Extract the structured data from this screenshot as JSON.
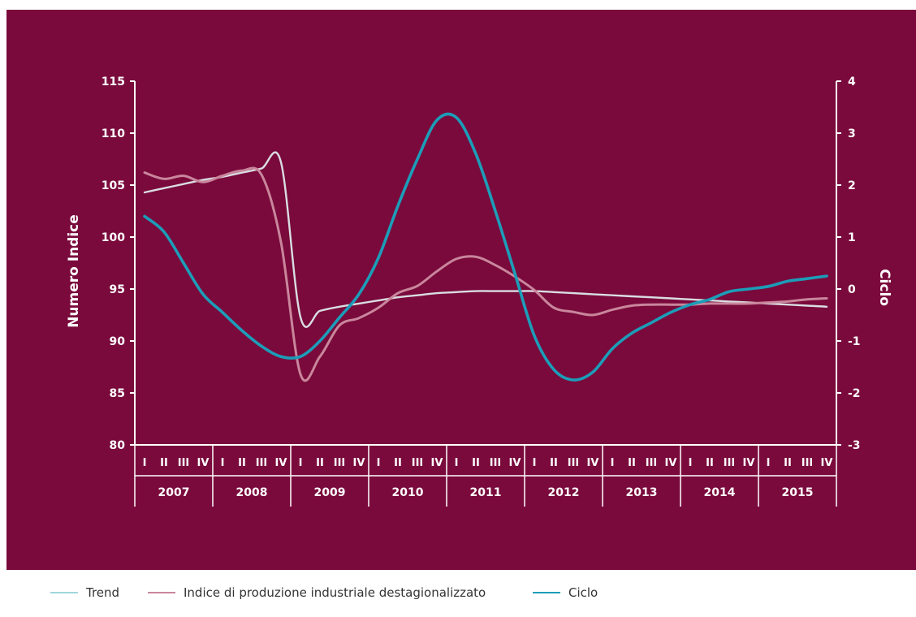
{
  "chart_data": {
    "type": "line",
    "ylabel_left": "Numero Indice",
    "ylabel_right": "Ciclo",
    "ylim_left": [
      80,
      115
    ],
    "yticks_left": [
      "115",
      "110",
      "105",
      "100",
      "95",
      "90",
      "85",
      "80"
    ],
    "ylim_right": [
      -3,
      4
    ],
    "yticks_right": [
      "4",
      "3",
      "2",
      "1",
      "0",
      "-1",
      "-2",
      "-3"
    ],
    "quarters": [
      "I",
      "II",
      "III",
      "IV"
    ],
    "years": [
      "2007",
      "2008",
      "2009",
      "2010",
      "2011",
      "2012",
      "2013",
      "2014",
      "2015"
    ],
    "x": [
      0,
      1,
      2,
      3,
      4,
      5,
      6,
      7,
      8,
      9,
      10,
      11,
      12,
      13,
      14,
      15,
      16,
      17,
      18,
      19,
      20,
      21,
      22,
      23,
      24,
      25,
      26,
      27,
      28,
      29,
      30,
      31,
      32,
      33,
      34,
      35
    ],
    "series": [
      {
        "name": "Trend",
        "color": "#d9dde2",
        "axis": "left",
        "values": [
          104.3,
          104.7,
          105.1,
          105.5,
          105.8,
          106.2,
          106.6,
          107.2,
          92.3,
          92.9,
          93.3,
          93.6,
          93.9,
          94.2,
          94.4,
          94.6,
          94.7,
          94.8,
          94.8,
          94.8,
          94.8,
          94.7,
          94.6,
          94.5,
          94.4,
          94.3,
          94.2,
          94.1,
          94.0,
          93.9,
          93.8,
          93.7,
          93.6,
          93.5,
          93.4,
          93.3
        ]
      },
      {
        "name": "Indice di produzione industriale destagionalizzato",
        "color": "#c9869c",
        "axis": "left",
        "values": [
          106.2,
          105.6,
          105.9,
          105.3,
          105.9,
          106.4,
          106.0,
          99.5,
          86.8,
          88.5,
          91.5,
          92.2,
          93.2,
          94.6,
          95.3,
          96.7,
          97.9,
          98.1,
          97.3,
          96.2,
          94.9,
          93.2,
          92.8,
          92.5,
          93.0,
          93.4,
          93.5,
          93.5,
          93.5,
          93.6,
          93.6,
          93.6,
          93.7,
          93.8,
          94.0,
          94.1
        ]
      },
      {
        "name": "Ciclo",
        "color": "#1c9db8",
        "axis": "right",
        "values": [
          1.4,
          1.1,
          0.5,
          -0.1,
          -0.45,
          -0.8,
          -1.1,
          -1.3,
          -1.3,
          -1.0,
          -0.55,
          -0.1,
          0.6,
          1.6,
          2.5,
          3.25,
          3.3,
          2.6,
          1.5,
          0.3,
          -0.9,
          -1.55,
          -1.75,
          -1.6,
          -1.15,
          -0.85,
          -0.65,
          -0.45,
          -0.3,
          -0.2,
          -0.05,
          0.0,
          0.05,
          0.15,
          0.2,
          0.25
        ]
      }
    ]
  }
}
